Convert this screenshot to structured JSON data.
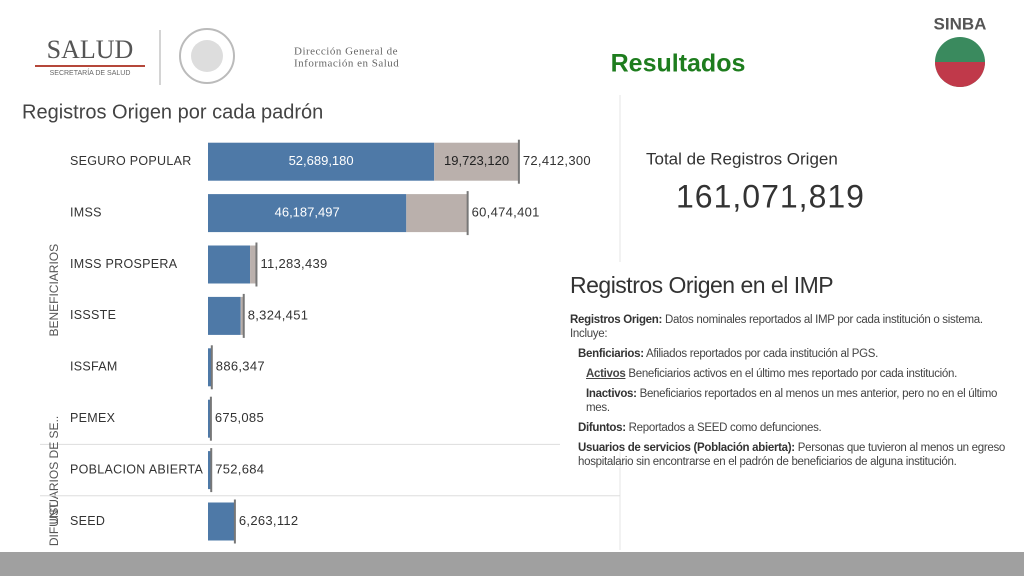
{
  "header": {
    "logo_text": "SALUD",
    "logo_subtext": "SECRETARÍA DE SALUD",
    "dept_line1": "Dirección General de",
    "dept_line2": "Información en Salud",
    "slide_title": "Resultados",
    "brand": "SINBA"
  },
  "summary": {
    "label": "Total de Registros Origen",
    "value": "161,071,819"
  },
  "definitions": {
    "title": "Registros Origen en el IMP",
    "items": [
      {
        "term": "Registros Origen:",
        "text": "Datos nominales reportados al IMP por cada institución o sistema. Incluye:",
        "level": 0
      },
      {
        "term": "Benficiarios:",
        "text": "Afiliados reportados por cada institución al PGS.",
        "level": 1
      },
      {
        "term": "Activos",
        "text": "Beneficiarios activos en el último mes reportado por cada institución.",
        "level": 2
      },
      {
        "term": "Inactivos:",
        "text": "Beneficiarios reportados en al menos un mes anterior, pero no en el último mes.",
        "level": 2
      },
      {
        "term": "Difuntos:",
        "text": "Reportados a SEED como defunciones.",
        "level": 1
      },
      {
        "term": "Usuarios de servicios (Población abierta):",
        "text": "Personas que tuvieron al menos un egreso hospitalario sin encontrarse en el padrón de beneficiarios de alguna institución.",
        "level": 1
      }
    ]
  },
  "chart_data": {
    "type": "stacked-barh",
    "title": "Registros Origen por cada padrón",
    "categories": [
      "SEGURO POPULAR",
      "IMSS",
      "IMSS PROSPERA",
      "ISSSTE",
      "ISSFAM",
      "PEMEX",
      "POBLACION ABIERTA",
      "SEED"
    ],
    "category_groups": [
      "BENEFICIARIOS",
      "BENEFICIARIOS",
      "BENEFICIARIOS",
      "BENEFICIARIOS",
      "BENEFICIARIOS",
      "BENEFICIARIOS",
      "USUARIOS DE SE..",
      "DIFUNT.."
    ],
    "series": [
      {
        "color": "#4e79a7",
        "values": [
          52689180,
          46187497,
          9800000,
          7600000,
          886347,
          675085,
          752684,
          6263112
        ],
        "value_labels": [
          "52,689,180",
          "46,187,497",
          null,
          null,
          null,
          null,
          null,
          null
        ]
      },
      {
        "color": "#bab0ac",
        "values": [
          19723120,
          14286904,
          1483439,
          724451,
          null,
          null,
          null,
          null
        ],
        "value_labels": [
          "19,723,120",
          null,
          null,
          null,
          null,
          null,
          null,
          null
        ]
      }
    ],
    "totals": [
      72412300,
      60474401,
      11283439,
      8324451,
      886347,
      675085,
      752684,
      6263112
    ],
    "total_labels": [
      "72,412,300",
      "60,474,401",
      "11,283,439",
      "8,324,451",
      "886,347",
      "675,085",
      "752,684",
      "6,263,112"
    ],
    "xlim": [
      0,
      75000000
    ]
  }
}
